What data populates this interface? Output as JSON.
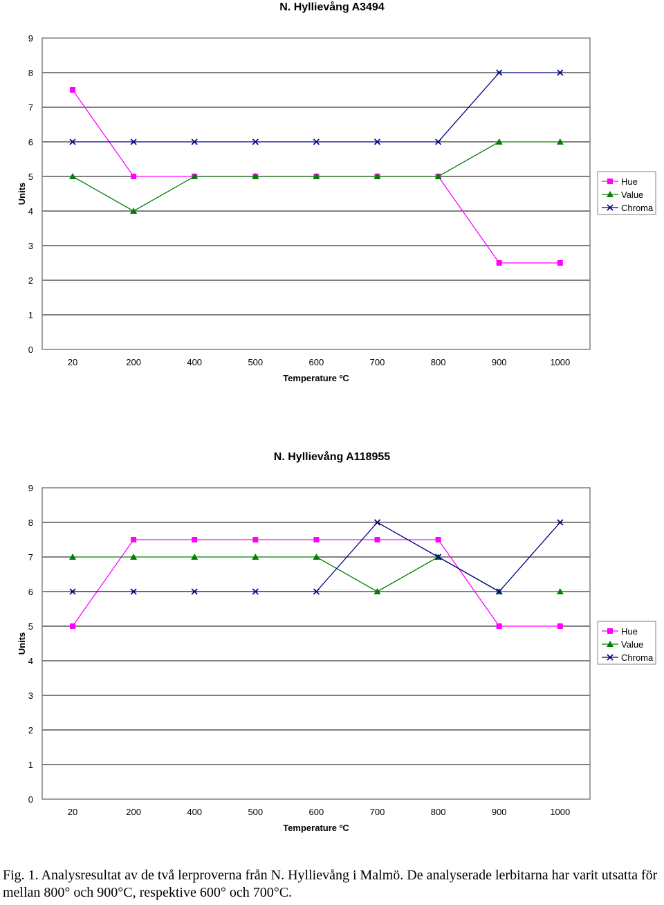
{
  "chart_data": [
    {
      "type": "line",
      "title": "N. Hyllievång A3494",
      "xlabel": "Temperature ºC",
      "ylabel": "Units",
      "categories": [
        "20",
        "200",
        "400",
        "500",
        "600",
        "700",
        "800",
        "900",
        "1000"
      ],
      "ylim": [
        0,
        9
      ],
      "yticks": [
        "0",
        "1",
        "2",
        "3",
        "4",
        "5",
        "6",
        "7",
        "8",
        "9"
      ],
      "grid": "horizontal",
      "legend_position": "right",
      "series": [
        {
          "name": "Hue",
          "color": "#ff00ff",
          "marker": "square",
          "values": [
            7.5,
            5,
            5,
            5,
            5,
            5,
            5,
            2.5,
            2.5
          ]
        },
        {
          "name": "Value",
          "color": "#008000",
          "marker": "triangle",
          "values": [
            5,
            4,
            5,
            5,
            5,
            5,
            5,
            6,
            6
          ]
        },
        {
          "name": "Chroma",
          "color": "#000080",
          "marker": "x",
          "values": [
            6,
            6,
            6,
            6,
            6,
            6,
            6,
            8,
            8
          ]
        }
      ]
    },
    {
      "type": "line",
      "title": "N. Hyllievång A118955",
      "xlabel": "Temperature ºC",
      "ylabel": "Units",
      "categories": [
        "20",
        "200",
        "400",
        "500",
        "600",
        "700",
        "800",
        "900",
        "1000"
      ],
      "ylim": [
        0,
        9
      ],
      "yticks": [
        "0",
        "1",
        "2",
        "3",
        "4",
        "5",
        "6",
        "7",
        "8",
        "9"
      ],
      "grid": "horizontal",
      "legend_position": "right",
      "series": [
        {
          "name": "Hue",
          "color": "#ff00ff",
          "marker": "square",
          "values": [
            5,
            7.5,
            7.5,
            7.5,
            7.5,
            7.5,
            7.5,
            5,
            5
          ]
        },
        {
          "name": "Value",
          "color": "#008000",
          "marker": "triangle",
          "values": [
            7,
            7,
            7,
            7,
            7,
            6,
            7,
            6,
            6
          ]
        },
        {
          "name": "Chroma",
          "color": "#000080",
          "marker": "x",
          "values": [
            6,
            6,
            6,
            6,
            6,
            8,
            7,
            6,
            8
          ]
        }
      ]
    }
  ],
  "caption": "Fig. 1. Analysresultat av de två lerproverna från N. Hyllievång i Malmö. De analyserade lerbitarna har varit utsatta för mellan 800° och 900°C, respektive 600° och 700°C."
}
